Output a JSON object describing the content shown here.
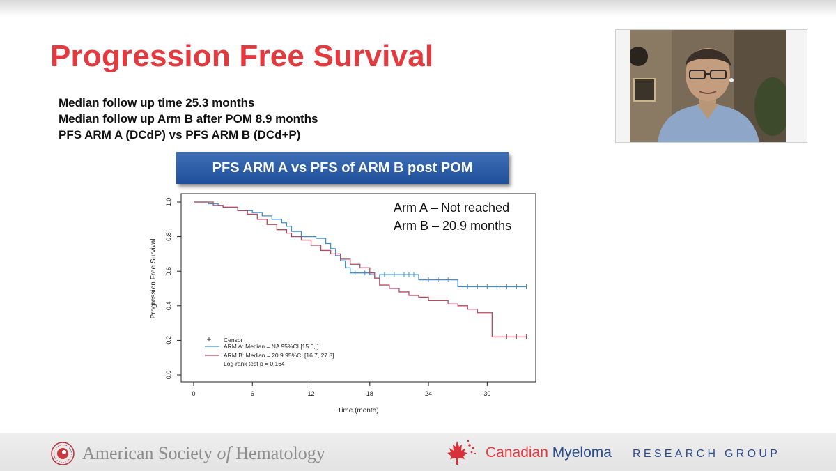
{
  "slide": {
    "title": "Progression Free Survival",
    "bullets": [
      "Median follow up time 25.3 months",
      "Median follow up Arm B after POM 8.9 months",
      "PFS ARM A (DCdP) vs PFS ARM B (DCd+P)"
    ],
    "banner": "PFS ARM A vs PFS of ARM B post POM"
  },
  "video": {
    "icon": "presenter-video-feed"
  },
  "footer": {
    "ash_name_before": "American Society ",
    "ash_name_of": "of",
    "ash_name_after": " Hematology",
    "cmrg_name_1": "Canadian",
    "cmrg_name_2": "Myeloma",
    "cmrg_sub": "RESEARCH GROUP"
  },
  "colors": {
    "title_red": "#e23a3f",
    "banner_blue": "#2f5fa8",
    "arm_a": "#3f8fd0",
    "arm_b": "#b5495f"
  },
  "chart_data": {
    "type": "line",
    "xlabel": "Time (month)",
    "ylabel": "Progression Free Survival",
    "xlim": [
      0,
      35
    ],
    "ylim": [
      0,
      1.0
    ],
    "xticks": [
      0,
      6,
      12,
      18,
      24,
      30
    ],
    "yticks": [
      0.0,
      0.2,
      0.4,
      0.6,
      0.8,
      1.0
    ],
    "grid": false,
    "annotations": [
      "Arm A – Not reached",
      "Arm B – 20.9 months"
    ],
    "legend": {
      "placement": "bottom-left",
      "censor_label": "Censor",
      "entries": [
        "ARM A: Median = NA   95%CI [15.6, ]",
        "ARM B: Median = 20.9 95%CI [16.7, 27.8]"
      ],
      "note": "Log-rank test p = 0.164"
    },
    "series": [
      {
        "name": "ARM A",
        "color": "#3f8fd0",
        "x": [
          0,
          1.5,
          2.5,
          3,
          4.5,
          6,
          7,
          8,
          9,
          9.5,
          10,
          11,
          12.5,
          13.5,
          14,
          14.5,
          15,
          15.5,
          16,
          18,
          18.5,
          19,
          23,
          27,
          34
        ],
        "y": [
          1.0,
          0.99,
          0.98,
          0.97,
          0.95,
          0.94,
          0.92,
          0.9,
          0.88,
          0.86,
          0.83,
          0.8,
          0.79,
          0.76,
          0.73,
          0.69,
          0.66,
          0.62,
          0.59,
          0.58,
          0.56,
          0.58,
          0.55,
          0.51,
          0.51
        ],
        "censor_x": [
          16.5,
          17.5,
          19.5,
          20.5,
          21.5,
          22,
          22.5,
          24,
          25,
          26,
          28,
          29,
          30,
          31,
          32,
          33,
          34
        ],
        "censor_y": [
          0.59,
          0.59,
          0.58,
          0.58,
          0.58,
          0.58,
          0.58,
          0.55,
          0.55,
          0.55,
          0.51,
          0.51,
          0.51,
          0.51,
          0.51,
          0.51,
          0.51
        ]
      },
      {
        "name": "ARM B",
        "color": "#b5495f",
        "x": [
          0,
          2,
          3,
          4.5,
          5.5,
          6.5,
          7.5,
          8.5,
          9.5,
          10,
          11,
          12,
          13,
          14,
          15,
          16,
          17,
          18,
          18.5,
          19,
          20,
          21,
          22,
          23,
          24,
          25,
          26,
          27,
          28,
          29,
          30,
          30.5,
          34
        ],
        "y": [
          1.0,
          0.98,
          0.97,
          0.95,
          0.93,
          0.9,
          0.87,
          0.84,
          0.82,
          0.8,
          0.78,
          0.75,
          0.72,
          0.7,
          0.67,
          0.64,
          0.62,
          0.59,
          0.56,
          0.52,
          0.5,
          0.48,
          0.46,
          0.45,
          0.43,
          0.43,
          0.41,
          0.4,
          0.38,
          0.36,
          0.36,
          0.22,
          0.22
        ]
      }
    ]
  }
}
